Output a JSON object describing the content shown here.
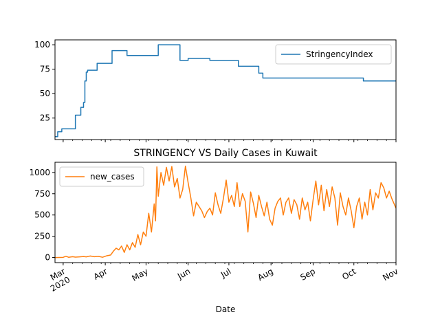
{
  "chart_data": {
    "type": "line",
    "title": "STRINGENCY VS Daily Cases in Kuwait",
    "xlabel": "Date",
    "x_tick_labels": [
      {
        "date": "2020-03-01",
        "label": "Mar",
        "sublabel": "2020"
      },
      {
        "date": "2020-04-01",
        "label": "Apr"
      },
      {
        "date": "2020-05-01",
        "label": "May"
      },
      {
        "date": "2020-06-01",
        "label": "Jun"
      },
      {
        "date": "2020-07-01",
        "label": "Jul"
      },
      {
        "date": "2020-08-01",
        "label": "Aug"
      },
      {
        "date": "2020-09-01",
        "label": "Sep"
      },
      {
        "date": "2020-10-01",
        "label": "Oct"
      },
      {
        "date": "2020-11-01",
        "label": "Nov"
      }
    ],
    "xlim": [
      "2020-02-24",
      "2020-11-01"
    ],
    "panels": [
      {
        "legend_position": "upper right",
        "ylim": [
          3,
          105
        ],
        "y_ticks": [
          25,
          50,
          75,
          100
        ],
        "series": [
          {
            "name": "StringencyIndex",
            "color": "#1f77b4",
            "step_points": [
              [
                "2020-02-24",
                6
              ],
              [
                "2020-02-26",
                11
              ],
              [
                "2020-02-29",
                14
              ],
              [
                "2020-03-10",
                28
              ],
              [
                "2020-03-14",
                36
              ],
              [
                "2020-03-16",
                41
              ],
              [
                "2020-03-17",
                63
              ],
              [
                "2020-03-18",
                72
              ],
              [
                "2020-03-19",
                74
              ],
              [
                "2020-03-26",
                81
              ],
              [
                "2020-04-06",
                94
              ],
              [
                "2020-04-17",
                89
              ],
              [
                "2020-05-10",
                100
              ],
              [
                "2020-05-26",
                84
              ],
              [
                "2020-06-01",
                86
              ],
              [
                "2020-06-17",
                84
              ],
              [
                "2020-07-08",
                78
              ],
              [
                "2020-07-23",
                71
              ],
              [
                "2020-07-26",
                66
              ],
              [
                "2020-10-08",
                63
              ],
              [
                "2020-11-01",
                63
              ]
            ]
          }
        ]
      },
      {
        "legend_position": "upper left",
        "ylim": [
          -60,
          1120
        ],
        "y_ticks": [
          0,
          250,
          500,
          750,
          1000
        ],
        "series": [
          {
            "name": "new_cases",
            "color": "#ff7f0e",
            "points": [
              [
                "2020-02-24",
                0
              ],
              [
                "2020-02-27",
                1
              ],
              [
                "2020-03-01",
                2
              ],
              [
                "2020-03-03",
                15
              ],
              [
                "2020-03-05",
                3
              ],
              [
                "2020-03-08",
                10
              ],
              [
                "2020-03-10",
                5
              ],
              [
                "2020-03-13",
                8
              ],
              [
                "2020-03-16",
                12
              ],
              [
                "2020-03-18",
                8
              ],
              [
                "2020-03-21",
                18
              ],
              [
                "2020-03-24",
                10
              ],
              [
                "2020-03-27",
                14
              ],
              [
                "2020-03-30",
                3
              ],
              [
                "2020-04-02",
                20
              ],
              [
                "2020-04-05",
                30
              ],
              [
                "2020-04-07",
                75
              ],
              [
                "2020-04-09",
                110
              ],
              [
                "2020-04-11",
                90
              ],
              [
                "2020-04-13",
                135
              ],
              [
                "2020-04-15",
                60
              ],
              [
                "2020-04-17",
                150
              ],
              [
                "2020-04-19",
                90
              ],
              [
                "2020-04-21",
                175
              ],
              [
                "2020-04-23",
                120
              ],
              [
                "2020-04-25",
                270
              ],
              [
                "2020-04-27",
                150
              ],
              [
                "2020-04-29",
                300
              ],
              [
                "2020-05-01",
                250
              ],
              [
                "2020-05-03",
                520
              ],
              [
                "2020-05-05",
                300
              ],
              [
                "2020-05-07",
                630
              ],
              [
                "2020-05-08",
                430
              ],
              [
                "2020-05-09",
                1065
              ],
              [
                "2020-05-10",
                720
              ],
              [
                "2020-05-12",
                1000
              ],
              [
                "2020-05-14",
                850
              ],
              [
                "2020-05-16",
                1060
              ],
              [
                "2020-05-18",
                900
              ],
              [
                "2020-05-20",
                1070
              ],
              [
                "2020-05-22",
                830
              ],
              [
                "2020-05-24",
                930
              ],
              [
                "2020-05-26",
                700
              ],
              [
                "2020-05-28",
                800
              ],
              [
                "2020-05-30",
                1075
              ],
              [
                "2020-06-01",
                880
              ],
              [
                "2020-06-03",
                700
              ],
              [
                "2020-06-05",
                490
              ],
              [
                "2020-06-07",
                650
              ],
              [
                "2020-06-09",
                600
              ],
              [
                "2020-06-11",
                550
              ],
              [
                "2020-06-13",
                470
              ],
              [
                "2020-06-15",
                540
              ],
              [
                "2020-06-17",
                580
              ],
              [
                "2020-06-19",
                500
              ],
              [
                "2020-06-21",
                760
              ],
              [
                "2020-06-23",
                620
              ],
              [
                "2020-06-25",
                520
              ],
              [
                "2020-06-27",
                700
              ],
              [
                "2020-06-29",
                910
              ],
              [
                "2020-07-01",
                650
              ],
              [
                "2020-07-03",
                730
              ],
              [
                "2020-07-05",
                600
              ],
              [
                "2020-07-07",
                880
              ],
              [
                "2020-07-09",
                600
              ],
              [
                "2020-07-11",
                750
              ],
              [
                "2020-07-13",
                660
              ],
              [
                "2020-07-15",
                300
              ],
              [
                "2020-07-17",
                770
              ],
              [
                "2020-07-19",
                640
              ],
              [
                "2020-07-21",
                470
              ],
              [
                "2020-07-23",
                730
              ],
              [
                "2020-07-25",
                600
              ],
              [
                "2020-07-27",
                490
              ],
              [
                "2020-07-29",
                650
              ],
              [
                "2020-07-31",
                450
              ],
              [
                "2020-08-02",
                380
              ],
              [
                "2020-08-04",
                580
              ],
              [
                "2020-08-06",
                660
              ],
              [
                "2020-08-08",
                700
              ],
              [
                "2020-08-10",
                500
              ],
              [
                "2020-08-12",
                650
              ],
              [
                "2020-08-14",
                700
              ],
              [
                "2020-08-16",
                520
              ],
              [
                "2020-08-18",
                680
              ],
              [
                "2020-08-20",
                620
              ],
              [
                "2020-08-22",
                450
              ],
              [
                "2020-08-24",
                700
              ],
              [
                "2020-08-26",
                560
              ],
              [
                "2020-08-28",
                650
              ],
              [
                "2020-08-30",
                430
              ],
              [
                "2020-09-01",
                680
              ],
              [
                "2020-09-03",
                900
              ],
              [
                "2020-09-05",
                620
              ],
              [
                "2020-09-07",
                850
              ],
              [
                "2020-09-09",
                550
              ],
              [
                "2020-09-11",
                800
              ],
              [
                "2020-09-13",
                600
              ],
              [
                "2020-09-15",
                830
              ],
              [
                "2020-09-17",
                700
              ],
              [
                "2020-09-19",
                380
              ],
              [
                "2020-09-21",
                760
              ],
              [
                "2020-09-23",
                600
              ],
              [
                "2020-09-25",
                500
              ],
              [
                "2020-09-27",
                700
              ],
              [
                "2020-09-29",
                550
              ],
              [
                "2020-10-01",
                350
              ],
              [
                "2020-10-03",
                600
              ],
              [
                "2020-10-05",
                700
              ],
              [
                "2020-10-07",
                450
              ],
              [
                "2020-10-09",
                650
              ],
              [
                "2020-10-11",
                500
              ],
              [
                "2020-10-13",
                800
              ],
              [
                "2020-10-15",
                560
              ],
              [
                "2020-10-17",
                760
              ],
              [
                "2020-10-19",
                700
              ],
              [
                "2020-10-21",
                880
              ],
              [
                "2020-10-23",
                820
              ],
              [
                "2020-10-25",
                700
              ],
              [
                "2020-10-27",
                780
              ],
              [
                "2020-10-29",
                690
              ],
              [
                "2020-11-01",
                580
              ]
            ]
          }
        ]
      }
    ]
  }
}
